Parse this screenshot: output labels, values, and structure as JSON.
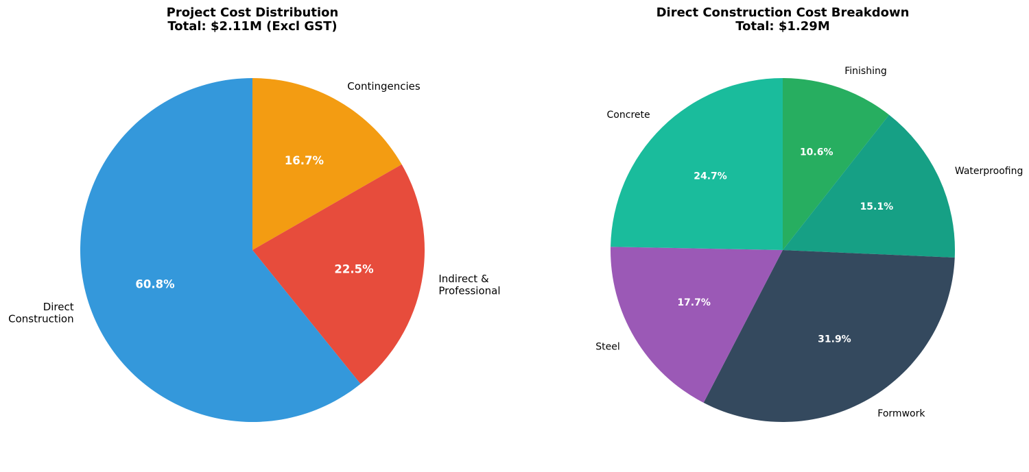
{
  "chart_data": [
    {
      "type": "pie",
      "title_lines": [
        "Project Cost Distribution",
        "Total: $2.11M (Excl GST)"
      ],
      "start_angle_deg": 90,
      "direction": "clockwise",
      "slices": [
        {
          "label_lines": [
            "Contingencies"
          ],
          "percent": 16.7,
          "percent_label": "16.7%",
          "color": "#f39c12"
        },
        {
          "label_lines": [
            "Indirect &",
            "Professional"
          ],
          "percent": 22.5,
          "percent_label": "22.5%",
          "color": "#e74c3c"
        },
        {
          "label_lines": [
            "Direct",
            "Construction"
          ],
          "percent": 60.8,
          "percent_label": "60.8%",
          "color": "#3498db"
        }
      ]
    },
    {
      "type": "pie",
      "title_lines": [
        "Direct Construction Cost Breakdown",
        "Total: $1.29M"
      ],
      "start_angle_deg": 90,
      "direction": "clockwise",
      "slices": [
        {
          "label_lines": [
            "Finishing"
          ],
          "percent": 10.6,
          "percent_label": "10.6%",
          "color": "#27ae60"
        },
        {
          "label_lines": [
            "Waterproofing"
          ],
          "percent": 15.1,
          "percent_label": "15.1%",
          "color": "#16a085"
        },
        {
          "label_lines": [
            "Formwork"
          ],
          "percent": 31.9,
          "percent_label": "31.9%",
          "color": "#34495e"
        },
        {
          "label_lines": [
            "Steel"
          ],
          "percent": 17.7,
          "percent_label": "17.7%",
          "color": "#9b59b6"
        },
        {
          "label_lines": [
            "Concrete"
          ],
          "percent": 24.7,
          "percent_label": "24.7%",
          "color": "#1abc9c"
        }
      ]
    }
  ]
}
